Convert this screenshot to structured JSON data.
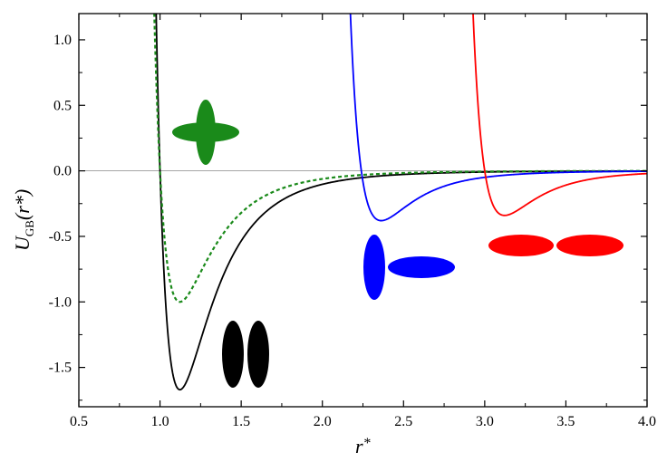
{
  "chart_data": {
    "type": "line",
    "xlabel_main": "r",
    "xlabel_sup": "*",
    "ylabel_main": "U",
    "ylabel_sub": "GB",
    "ylabel_rest": "(r*)",
    "xlim": [
      0.5,
      4.0
    ],
    "ylim": [
      -1.8,
      1.2
    ],
    "x_ticks": [
      0.5,
      1.0,
      1.5,
      2.0,
      2.5,
      3.0,
      3.5,
      4.0
    ],
    "x_tick_labels": [
      "0.5",
      "1.0",
      "1.5",
      "2.0",
      "2.5",
      "3.0",
      "3.5",
      "4.0"
    ],
    "y_ticks": [
      1.0,
      0.5,
      0.0,
      -0.5,
      -1.0,
      -1.5
    ],
    "y_tick_labels": [
      "1.0",
      "0.5",
      "0.0",
      "-0.5",
      "-1.0",
      "-1.5"
    ],
    "zero_line": true,
    "series": [
      {
        "key": "side-by-side",
        "color": "#000000",
        "style": "solid",
        "depth": 1.67,
        "r_min": 1.12,
        "r_zero": 1.0,
        "points": [
          [
            1.0,
            0.0
          ],
          [
            1.12,
            -1.67
          ],
          [
            1.5,
            -0.56
          ],
          [
            2.0,
            -0.12
          ],
          [
            2.5,
            -0.03
          ],
          [
            3.0,
            -0.01
          ],
          [
            4.0,
            0.0
          ]
        ]
      },
      {
        "key": "cross",
        "color": "#1a8a1a",
        "style": "dashed",
        "depth": 1.0,
        "r_min": 1.12,
        "r_zero": 1.0,
        "points": [
          [
            1.0,
            0.0
          ],
          [
            1.12,
            -1.0
          ],
          [
            1.5,
            -0.33
          ],
          [
            2.0,
            -0.07
          ],
          [
            2.5,
            -0.02
          ],
          [
            3.0,
            -0.005
          ],
          [
            4.0,
            0.0
          ]
        ]
      },
      {
        "key": "T-shaped",
        "color": "#0000ff",
        "style": "solid",
        "depth": 0.38,
        "r_min": 2.36,
        "r_zero": 2.24,
        "points": [
          [
            2.24,
            0.0
          ],
          [
            2.36,
            -0.38
          ],
          [
            2.6,
            -0.24
          ],
          [
            3.0,
            -0.09
          ],
          [
            3.5,
            -0.03
          ],
          [
            4.0,
            -0.01
          ]
        ]
      },
      {
        "key": "end-to-end",
        "color": "#ff0000",
        "style": "solid",
        "depth": 0.34,
        "r_min": 3.12,
        "r_zero": 3.0,
        "points": [
          [
            3.0,
            0.0
          ],
          [
            3.12,
            -0.34
          ],
          [
            3.4,
            -0.2
          ],
          [
            3.7,
            -0.08
          ],
          [
            4.0,
            -0.02
          ]
        ]
      }
    ],
    "shapes": [
      {
        "key": "cross",
        "color": "#1a8a1a"
      },
      {
        "key": "side-by-side",
        "color": "#000000"
      },
      {
        "key": "T-shaped",
        "color": "#0000ff"
      },
      {
        "key": "end-to-end",
        "color": "#ff0000"
      }
    ],
    "grid": false
  }
}
